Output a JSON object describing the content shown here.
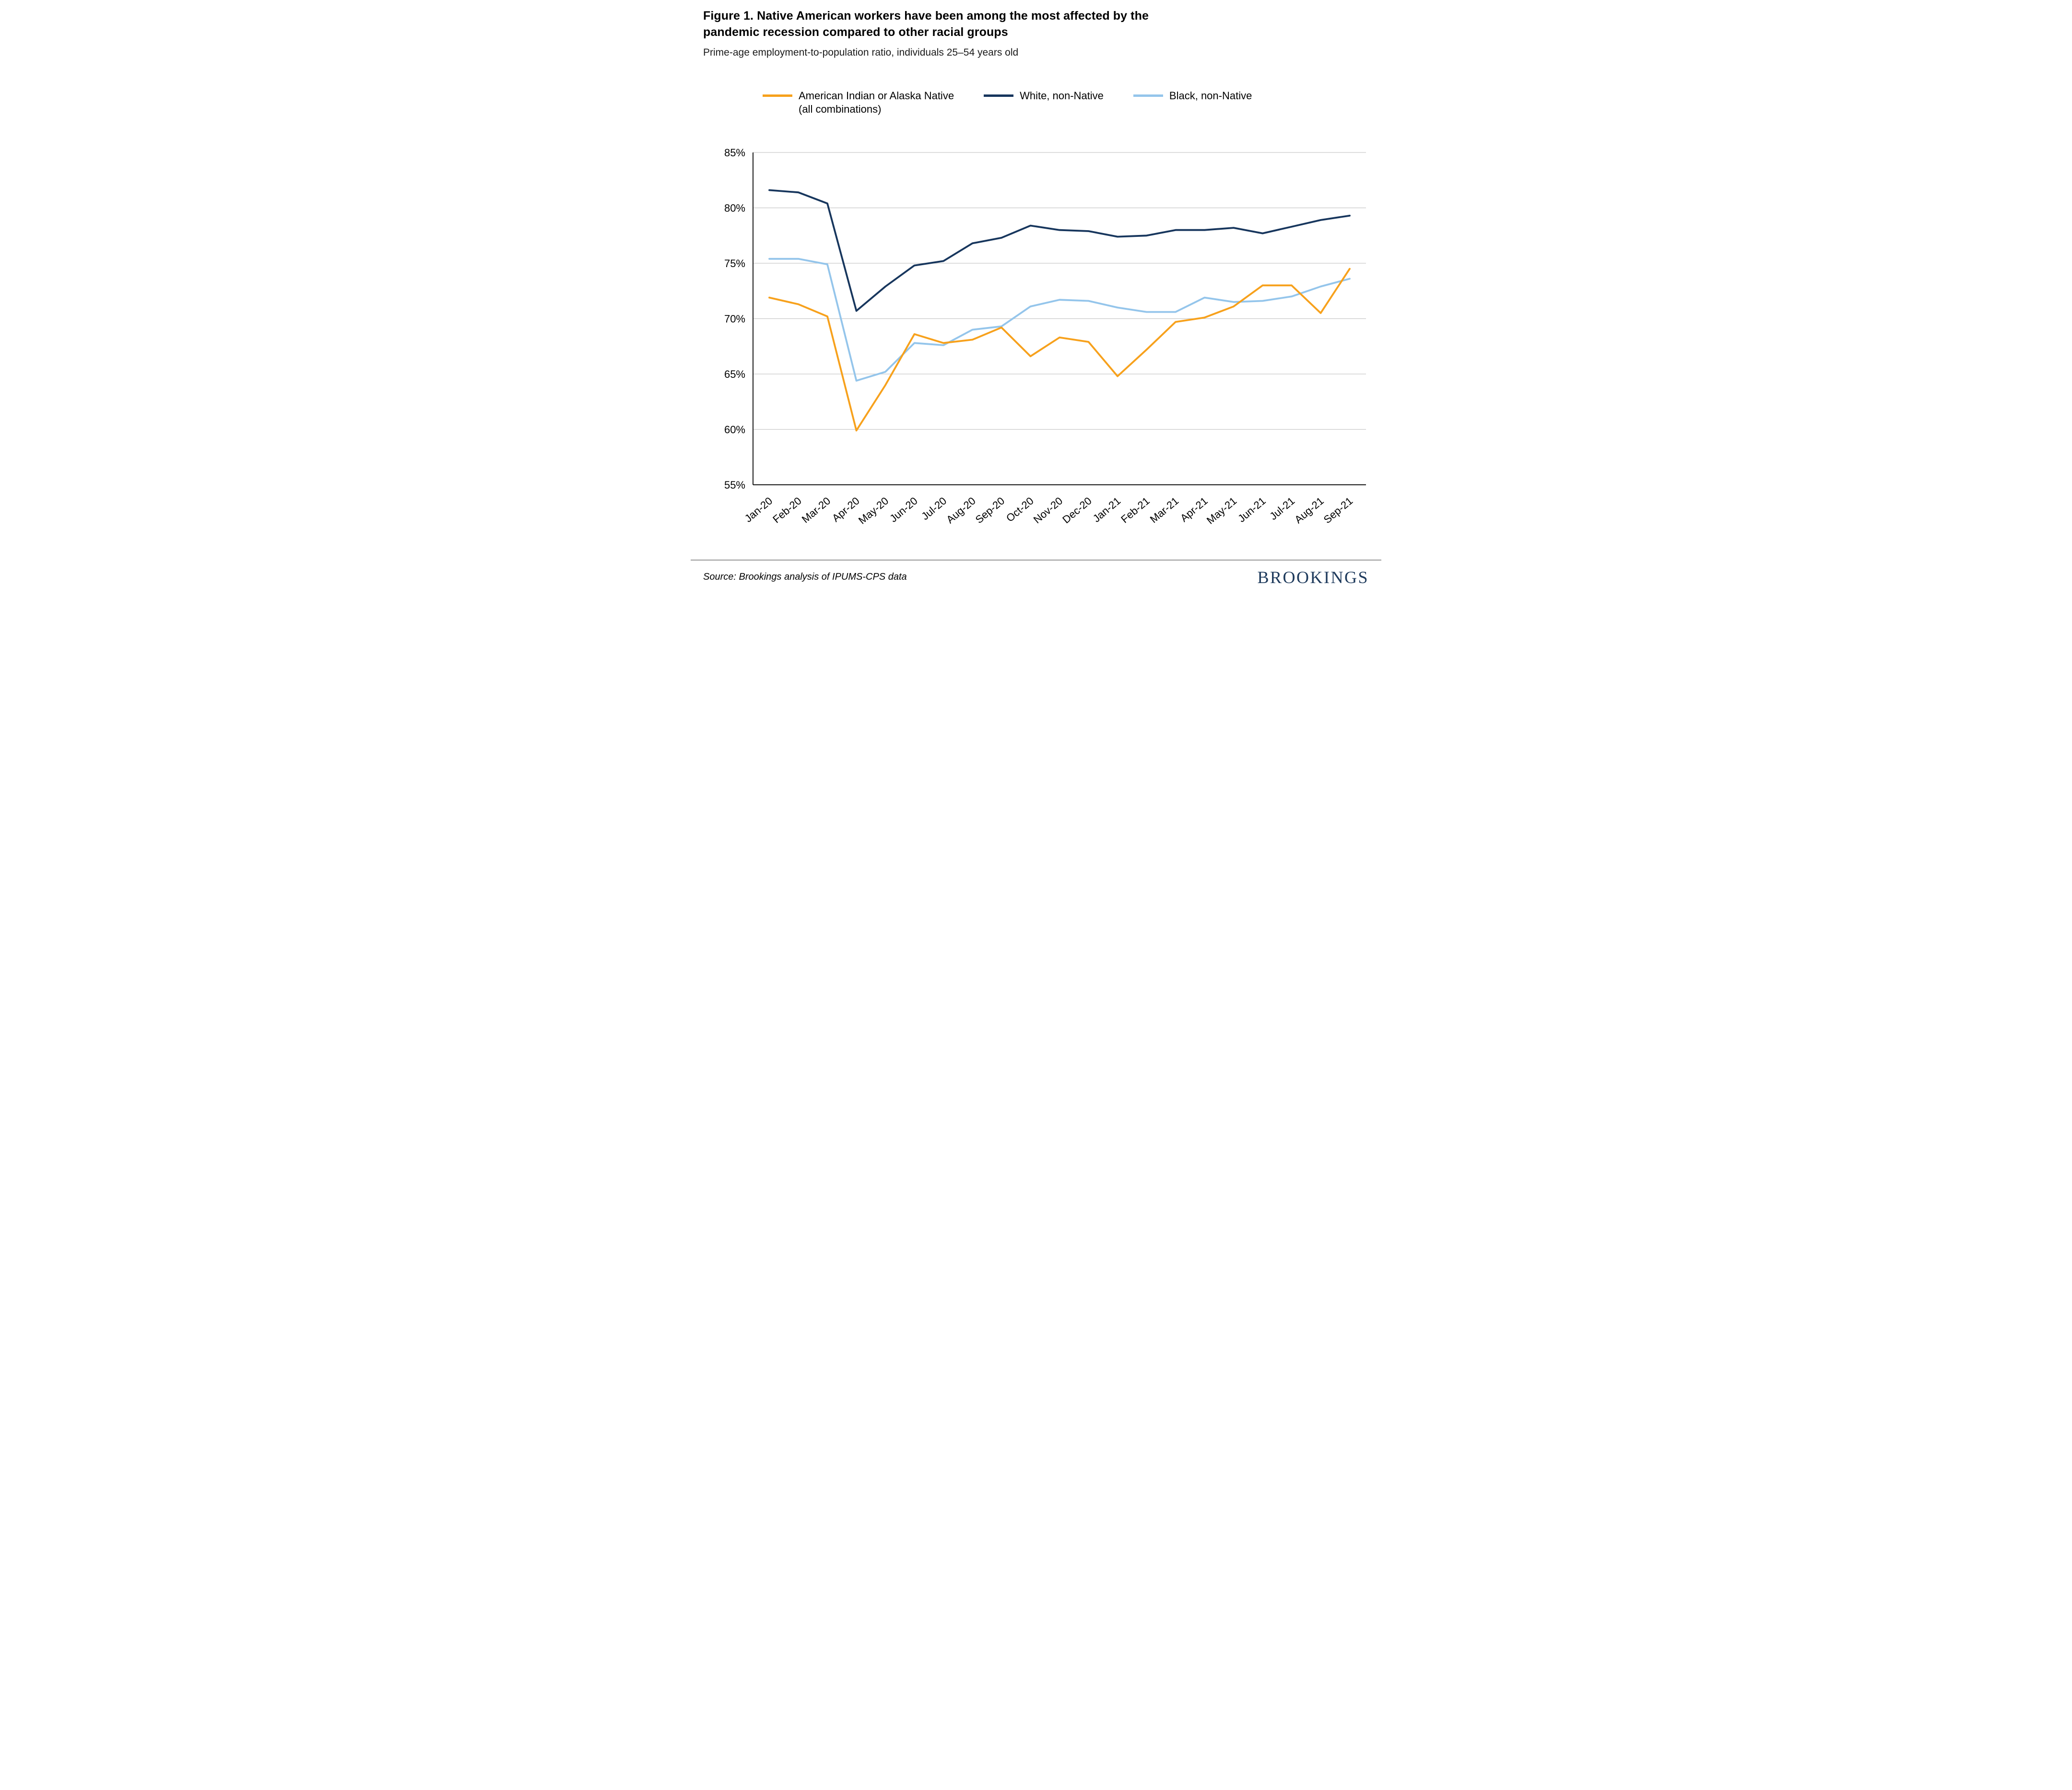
{
  "header": {
    "title": "Figure 1. Native American workers have been among the most affected by the pandemic recession compared to other racial groups",
    "subtitle": "Prime-age employment-to-population ratio, individuals 25–54 years old"
  },
  "footer": {
    "source": "Source: Brookings analysis of IPUMS-CPS data",
    "logo": "BROOKINGS"
  },
  "colors": {
    "grid": "#C9C9C9",
    "axis": "#1A1A1A",
    "logo_navy": "#1E3A5C"
  },
  "chart_data": {
    "type": "line",
    "title": "Prime-age employment-to-population ratio, individuals 25–54 years old",
    "x": [
      "Jan-20",
      "Feb-20",
      "Mar-20",
      "Apr-20",
      "May-20",
      "Jun-20",
      "Jul-20",
      "Aug-20",
      "Sep-20",
      "Oct-20",
      "Nov-20",
      "Dec-20",
      "Jan-21",
      "Feb-21",
      "Mar-21",
      "Apr-21",
      "May-21",
      "Jun-21",
      "Jul-21",
      "Aug-21",
      "Sep-21"
    ],
    "series": [
      {
        "id": "aian",
        "name": "American Indian or Alaska Native (all combinations)",
        "label_lines": [
          "American Indian or Alaska Native",
          "(all combinations)"
        ],
        "color": "#F7A11C",
        "values": [
          71.9,
          71.3,
          70.2,
          59.9,
          64.0,
          68.6,
          67.8,
          68.1,
          69.2,
          66.6,
          68.3,
          67.9,
          64.8,
          67.2,
          69.7,
          70.1,
          71.1,
          73.0,
          73.0,
          70.5,
          74.5
        ]
      },
      {
        "id": "white-non-native",
        "name": "White, non-Native",
        "label_lines": [
          "White, non-Native"
        ],
        "color": "#17365D",
        "values": [
          81.6,
          81.4,
          80.4,
          70.7,
          72.9,
          74.8,
          75.2,
          76.8,
          77.3,
          78.4,
          78.0,
          77.9,
          77.4,
          77.5,
          78.0,
          78.0,
          78.2,
          77.7,
          78.3,
          78.9,
          79.3
        ]
      },
      {
        "id": "black-non-native",
        "name": "Black, non-Native",
        "label_lines": [
          "Black, non-Native"
        ],
        "color": "#94C5EB",
        "values": [
          75.4,
          75.4,
          74.9,
          64.4,
          65.2,
          67.8,
          67.6,
          69.0,
          69.3,
          71.1,
          71.7,
          71.6,
          71.0,
          70.6,
          70.6,
          71.9,
          71.5,
          71.6,
          72.0,
          72.9,
          73.6
        ]
      }
    ],
    "ylim": [
      55,
      85
    ],
    "yticks": [
      55,
      60,
      65,
      70,
      75,
      80,
      85
    ],
    "ytick_suffix": "%",
    "grid": true,
    "legend_position": "top"
  }
}
